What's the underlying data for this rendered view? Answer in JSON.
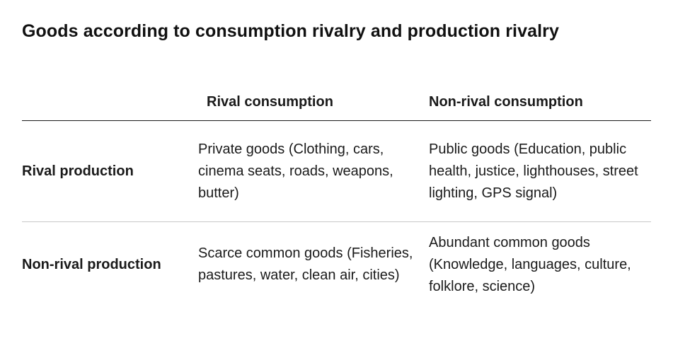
{
  "title": "Goods according to consumption rivalry and production rivalry",
  "table": {
    "columns": [
      "",
      "Rival consumption",
      "Non-rival consumption"
    ],
    "rows": [
      {
        "label": "Rival production",
        "cells": [
          "Private goods (Clothing, cars, cinema seats, roads, weapons, butter)",
          "Public goods (Education, public health, justice, lighthouses, street lighting, GPS signal)"
        ]
      },
      {
        "label": "Non-rival production",
        "cells": [
          "Scarce common goods (Fisheries, pastures, water, clean air, cities)",
          "Abundant common goods (Knowledge, languages, culture, folklore, science)"
        ]
      }
    ]
  }
}
